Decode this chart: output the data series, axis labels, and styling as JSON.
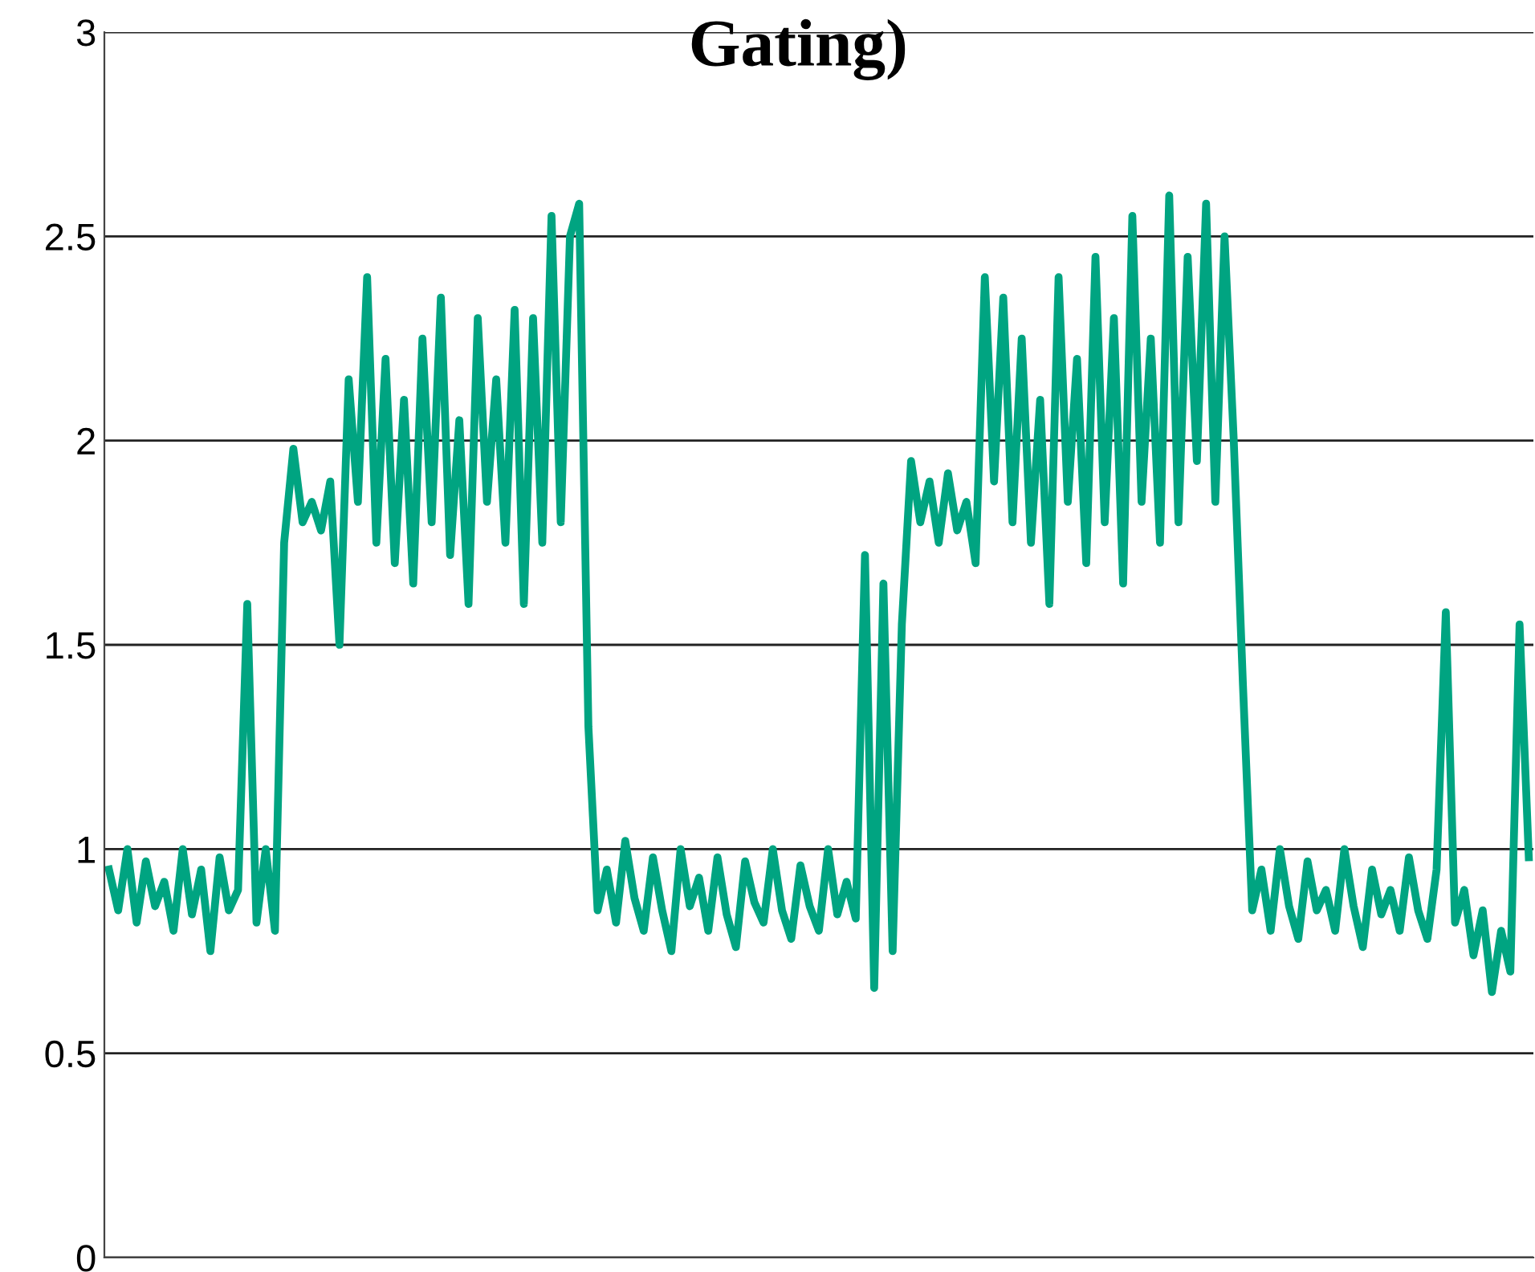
{
  "chart_data": {
    "type": "line",
    "title": "Gating)",
    "color": "#00a481",
    "ylim": [
      0,
      3
    ],
    "yticks": [
      0,
      0.5,
      1,
      1.5,
      2,
      2.5,
      3
    ],
    "grid": "y",
    "tick_labels": "y",
    "marker": "none",
    "line_style": "solid",
    "values": [
      0.95,
      0.85,
      1.0,
      0.82,
      0.97,
      0.86,
      0.92,
      0.8,
      1.0,
      0.84,
      0.95,
      0.75,
      0.98,
      0.85,
      0.9,
      1.6,
      0.82,
      1.0,
      0.8,
      1.75,
      1.98,
      1.8,
      1.85,
      1.78,
      1.9,
      1.5,
      2.15,
      1.85,
      2.4,
      1.75,
      2.2,
      1.7,
      2.1,
      1.65,
      2.25,
      1.8,
      2.35,
      1.72,
      2.05,
      1.6,
      2.3,
      1.85,
      2.15,
      1.75,
      2.32,
      1.6,
      2.3,
      1.75,
      2.55,
      1.8,
      2.5,
      2.58,
      1.3,
      0.85,
      0.95,
      0.82,
      1.02,
      0.88,
      0.8,
      0.98,
      0.85,
      0.75,
      1.0,
      0.86,
      0.93,
      0.8,
      0.98,
      0.84,
      0.76,
      0.97,
      0.87,
      0.82,
      1.0,
      0.85,
      0.78,
      0.96,
      0.86,
      0.8,
      1.0,
      0.84,
      0.92,
      0.83,
      1.72,
      0.66,
      1.65,
      0.75,
      1.55,
      1.95,
      1.8,
      1.9,
      1.75,
      1.92,
      1.78,
      1.85,
      1.7,
      2.4,
      1.9,
      2.35,
      1.8,
      2.25,
      1.75,
      2.1,
      1.6,
      2.4,
      1.85,
      2.2,
      1.7,
      2.45,
      1.8,
      2.3,
      1.65,
      2.55,
      1.85,
      2.25,
      1.75,
      2.6,
      1.8,
      2.45,
      1.95,
      2.58,
      1.85,
      2.5,
      2.0,
      1.4,
      0.85,
      0.95,
      0.8,
      1.0,
      0.86,
      0.78,
      0.97,
      0.85,
      0.9,
      0.8,
      1.0,
      0.86,
      0.76,
      0.95,
      0.84,
      0.9,
      0.8,
      0.98,
      0.85,
      0.78,
      0.95,
      1.58,
      0.82,
      0.9,
      0.74,
      0.85,
      0.65,
      0.8,
      0.7,
      1.55,
      0.98
    ]
  }
}
